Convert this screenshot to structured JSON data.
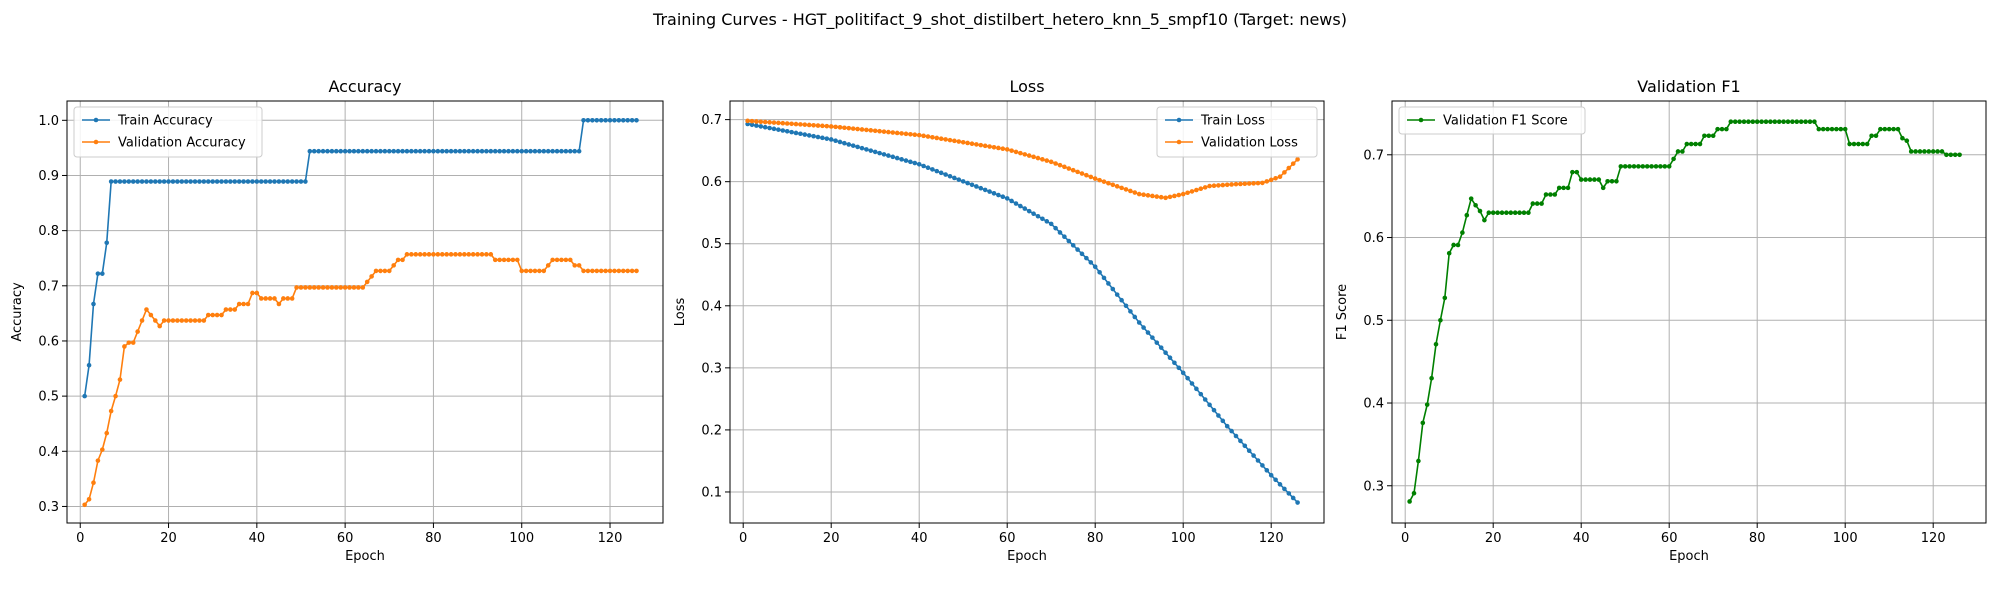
{
  "figure": {
    "title": "Training Curves - HGT_politifact_9_shot_distilbert_hetero_knn_5_smpf10 (Target: news)"
  },
  "colors": {
    "train": "#1f77b4",
    "validation": "#ff7f0e",
    "f1": "#008000",
    "grid": "#b0b0b0"
  },
  "chart_data": [
    {
      "type": "line",
      "title": "Accuracy",
      "xlabel": "Epoch",
      "ylabel": "Accuracy",
      "xlim": [
        -3,
        132
      ],
      "ylim": [
        0.27,
        1.035
      ],
      "xticks": [
        0,
        20,
        40,
        60,
        80,
        100,
        120
      ],
      "yticks": [
        0.3,
        0.4,
        0.5,
        0.6,
        0.7,
        0.8,
        0.9,
        1.0
      ],
      "ytick_labels": [
        "0.3",
        "0.4",
        "0.5",
        "0.6",
        "0.7",
        "0.8",
        "0.9",
        "1.0"
      ],
      "grid": true,
      "legend_position": "upper-left",
      "series": [
        {
          "name": "Train Accuracy",
          "color": "#1f77b4",
          "segments": [
            [
              1,
              0.5
            ],
            [
              2,
              0.556
            ],
            [
              3,
              0.667
            ],
            [
              4,
              0.722
            ],
            [
              5,
              0.722
            ],
            [
              6,
              0.778
            ],
            [
              7,
              0.889
            ],
            [
              51,
              0.889
            ],
            [
              52,
              0.944
            ],
            [
              113,
              0.944
            ],
            [
              114,
              1.0
            ],
            [
              126,
              1.0
            ]
          ]
        },
        {
          "name": "Validation Accuracy",
          "color": "#ff7f0e",
          "segments": [
            [
              1,
              0.303
            ],
            [
              2,
              0.313
            ],
            [
              3,
              0.343
            ],
            [
              4,
              0.383
            ],
            [
              5,
              0.403
            ],
            [
              6,
              0.433
            ],
            [
              7,
              0.473
            ],
            [
              8,
              0.5
            ],
            [
              9,
              0.53
            ],
            [
              10,
              0.59
            ],
            [
              11,
              0.597
            ],
            [
              12,
              0.597
            ],
            [
              13,
              0.617
            ],
            [
              14,
              0.637
            ],
            [
              15,
              0.657
            ],
            [
              16,
              0.647
            ],
            [
              17,
              0.637
            ],
            [
              18,
              0.627
            ],
            [
              19,
              0.637
            ],
            [
              28,
              0.637
            ],
            [
              29,
              0.647
            ],
            [
              32,
              0.647
            ],
            [
              33,
              0.657
            ],
            [
              35,
              0.657
            ],
            [
              36,
              0.667
            ],
            [
              38,
              0.667
            ],
            [
              39,
              0.687
            ],
            [
              40,
              0.687
            ],
            [
              41,
              0.677
            ],
            [
              44,
              0.677
            ],
            [
              45,
              0.667
            ],
            [
              46,
              0.677
            ],
            [
              48,
              0.677
            ],
            [
              49,
              0.697
            ],
            [
              64,
              0.697
            ],
            [
              65,
              0.707
            ],
            [
              66,
              0.717
            ],
            [
              67,
              0.727
            ],
            [
              70,
              0.727
            ],
            [
              71,
              0.737
            ],
            [
              72,
              0.747
            ],
            [
              73,
              0.747
            ],
            [
              74,
              0.757
            ],
            [
              93,
              0.757
            ],
            [
              94,
              0.747
            ],
            [
              99,
              0.747
            ],
            [
              100,
              0.727
            ],
            [
              105,
              0.727
            ],
            [
              106,
              0.737
            ],
            [
              107,
              0.747
            ],
            [
              111,
              0.747
            ],
            [
              112,
              0.737
            ],
            [
              113,
              0.737
            ],
            [
              114,
              0.727
            ],
            [
              126,
              0.727
            ]
          ]
        }
      ]
    },
    {
      "type": "line",
      "title": "Loss",
      "xlabel": "Epoch",
      "ylabel": "Loss",
      "xlim": [
        -3,
        132
      ],
      "ylim": [
        0.05,
        0.73
      ],
      "xticks": [
        0,
        20,
        40,
        60,
        80,
        100,
        120
      ],
      "yticks": [
        0.1,
        0.2,
        0.3,
        0.4,
        0.5,
        0.6,
        0.7
      ],
      "ytick_labels": [
        "0.1",
        "0.2",
        "0.3",
        "0.4",
        "0.5",
        "0.6",
        "0.7"
      ],
      "grid": true,
      "legend_position": "upper-right",
      "series": [
        {
          "name": "Train Loss",
          "color": "#1f77b4",
          "segments": [
            [
              1,
              0.693
            ],
            [
              20,
              0.668
            ],
            [
              40,
              0.628
            ],
            [
              60,
              0.573
            ],
            [
              70,
              0.532
            ],
            [
              80,
              0.463
            ],
            [
              90,
              0.373
            ],
            [
              100,
              0.292
            ],
            [
              110,
              0.206
            ],
            [
              120,
              0.127
            ],
            [
              126,
              0.083
            ]
          ]
        },
        {
          "name": "Validation Loss",
          "color": "#ff7f0e",
          "segments": [
            [
              1,
              0.698
            ],
            [
              20,
              0.689
            ],
            [
              40,
              0.675
            ],
            [
              60,
              0.652
            ],
            [
              70,
              0.632
            ],
            [
              80,
              0.605
            ],
            [
              90,
              0.58
            ],
            [
              96,
              0.574
            ],
            [
              100,
              0.58
            ],
            [
              106,
              0.593
            ],
            [
              112,
              0.596
            ],
            [
              118,
              0.598
            ],
            [
              122,
              0.608
            ],
            [
              126,
              0.636
            ]
          ]
        }
      ]
    },
    {
      "type": "line",
      "title": "Validation F1",
      "xlabel": "Epoch",
      "ylabel": "F1 Score",
      "xlim": [
        -3,
        132
      ],
      "ylim": [
        0.255,
        0.765
      ],
      "xticks": [
        0,
        20,
        40,
        60,
        80,
        100,
        120
      ],
      "yticks": [
        0.3,
        0.4,
        0.5,
        0.6,
        0.7
      ],
      "ytick_labels": [
        "0.3",
        "0.4",
        "0.5",
        "0.6",
        "0.7"
      ],
      "grid": true,
      "legend_position": "upper-left",
      "series": [
        {
          "name": "Validation F1 Score",
          "color": "#008000",
          "segments": [
            [
              1,
              0.281
            ],
            [
              2,
              0.291
            ],
            [
              3,
              0.33
            ],
            [
              4,
              0.376
            ],
            [
              5,
              0.398
            ],
            [
              6,
              0.43
            ],
            [
              7,
              0.471
            ],
            [
              8,
              0.5
            ],
            [
              9,
              0.527
            ],
            [
              10,
              0.581
            ],
            [
              11,
              0.591
            ],
            [
              12,
              0.591
            ],
            [
              13,
              0.606
            ],
            [
              14,
              0.627
            ],
            [
              15,
              0.647
            ],
            [
              16,
              0.639
            ],
            [
              17,
              0.632
            ],
            [
              18,
              0.621
            ],
            [
              19,
              0.63
            ],
            [
              28,
              0.63
            ],
            [
              29,
              0.641
            ],
            [
              31,
              0.641
            ],
            [
              32,
              0.652
            ],
            [
              34,
              0.652
            ],
            [
              35,
              0.66
            ],
            [
              37,
              0.66
            ],
            [
              38,
              0.679
            ],
            [
              39,
              0.679
            ],
            [
              40,
              0.67
            ],
            [
              44,
              0.67
            ],
            [
              45,
              0.66
            ],
            [
              46,
              0.668
            ],
            [
              48,
              0.668
            ],
            [
              49,
              0.686
            ],
            [
              60,
              0.686
            ],
            [
              61,
              0.695
            ],
            [
              62,
              0.704
            ],
            [
              63,
              0.704
            ],
            [
              64,
              0.713
            ],
            [
              67,
              0.713
            ],
            [
              68,
              0.723
            ],
            [
              70,
              0.723
            ],
            [
              71,
              0.731
            ],
            [
              73,
              0.731
            ],
            [
              74,
              0.74
            ],
            [
              93,
              0.74
            ],
            [
              94,
              0.731
            ],
            [
              100,
              0.731
            ],
            [
              101,
              0.713
            ],
            [
              105,
              0.713
            ],
            [
              106,
              0.723
            ],
            [
              107,
              0.723
            ],
            [
              108,
              0.731
            ],
            [
              112,
              0.731
            ],
            [
              113,
              0.72
            ],
            [
              114,
              0.717
            ],
            [
              115,
              0.704
            ],
            [
              122,
              0.704
            ],
            [
              123,
              0.7
            ],
            [
              126,
              0.7
            ]
          ]
        }
      ]
    }
  ]
}
